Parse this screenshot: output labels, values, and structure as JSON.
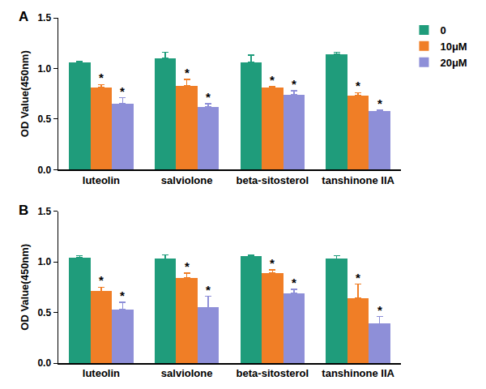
{
  "chart_data": [
    {
      "type": "bar",
      "title": "A",
      "y_label": "OD Value(450nm)",
      "categories": [
        "luteolin",
        "salviolone",
        "beta-sitosterol",
        "tanshinone IIA"
      ],
      "series": [
        {
          "name": "0",
          "color": "#1f9c7b",
          "values": [
            1.06,
            1.1,
            1.06,
            1.14
          ],
          "errors": [
            0.01,
            0.06,
            0.07,
            0.02
          ]
        },
        {
          "name": "10μM",
          "color": "#f07e26",
          "values": [
            0.81,
            0.83,
            0.81,
            0.73
          ],
          "errors": [
            0.03,
            0.06,
            0.01,
            0.03
          ],
          "annotations": [
            "*",
            "*",
            "*",
            "*"
          ]
        },
        {
          "name": "20μM",
          "color": "#8e8fd8",
          "values": [
            0.65,
            0.62,
            0.74,
            0.58
          ],
          "errors": [
            0.06,
            0.03,
            0.04,
            0.01
          ],
          "annotations": [
            "*",
            "*",
            "*",
            "*"
          ]
        }
      ],
      "ylim": [
        0,
        1.5
      ],
      "yticks": [
        {
          "value": 0,
          "label": "0.0"
        },
        0.5,
        {
          "value": 1,
          "label": "1.0"
        },
        1.5
      ],
      "grid": false,
      "legend": "upper right"
    },
    {
      "type": "bar",
      "title": "B",
      "y_label": "OD Value(450nm)",
      "categories": [
        "luteolin",
        "salviolone",
        "beta-sitosterol",
        "tanshinone IIA"
      ],
      "series": [
        {
          "name": "0",
          "color": "#1f9c7b",
          "values": [
            1.04,
            1.03,
            1.06,
            1.03
          ],
          "errors": [
            0.02,
            0.04,
            0.01,
            0.03
          ]
        },
        {
          "name": "10μM",
          "color": "#f07e26",
          "values": [
            0.71,
            0.84,
            0.89,
            0.64
          ],
          "errors": [
            0.04,
            0.05,
            0.03,
            0.14
          ],
          "annotations": [
            "*",
            "*",
            "*",
            "*"
          ]
        },
        {
          "name": "20μM",
          "color": "#8e8fd8",
          "values": [
            0.53,
            0.55,
            0.69,
            0.39
          ],
          "errors": [
            0.07,
            0.11,
            0.04,
            0.07
          ],
          "annotations": [
            "*",
            "*",
            "*",
            "*"
          ]
        }
      ],
      "ylim": [
        0,
        1.5
      ],
      "yticks": [
        {
          "value": 0,
          "label": "0.0"
        },
        0.5,
        {
          "value": 1,
          "label": "1.0"
        },
        1.5
      ],
      "grid": false,
      "legend": "upper right"
    }
  ]
}
